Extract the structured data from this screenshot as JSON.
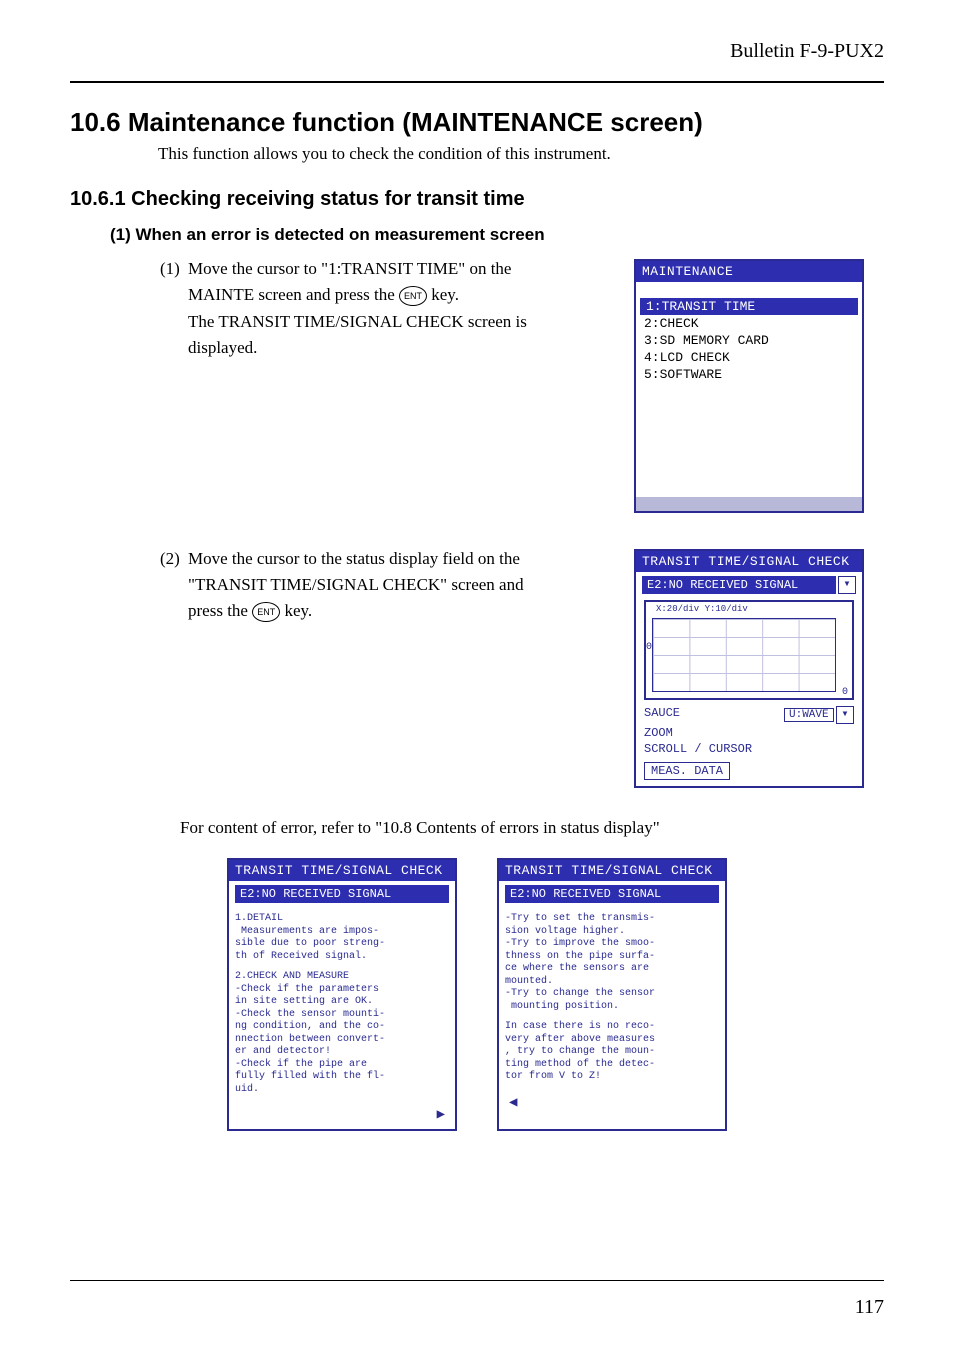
{
  "header": {
    "bulletin": "Bulletin F-9-PUX2"
  },
  "section": {
    "title": "10.6  Maintenance function (MAINTENANCE screen)",
    "intro": "This function allows you to check the condition of this instrument."
  },
  "subsection": {
    "title": "10.6.1  Checking receiving status for transit time",
    "subheading": "(1)  When an error is detected on measurement screen"
  },
  "steps": {
    "s1_num": "(1)",
    "s1_l1": "Move the cursor to \"1:TRANSIT TIME\" on the",
    "s1_l2_a": "MAINTE screen and press the ",
    "s1_l2_b": " key.",
    "s1_l3": "The TRANSIT TIME/SIGNAL CHECK screen is",
    "s1_l4": "displayed.",
    "s2_num": "(2)",
    "s2_l1": "Move the cursor to the status display field on the",
    "s2_l2": "\"TRANSIT TIME/SIGNAL CHECK\" screen and",
    "s2_l3_a": "press the ",
    "s2_l3_b": " key.",
    "ent_label": "ENT"
  },
  "ref_text": "For content of error, refer to \"10.8 Contents of errors in status display\"",
  "lcd1": {
    "title": "MAINTENANCE",
    "items": [
      {
        "label": "1:TRANSIT TIME",
        "selected": true
      },
      {
        "label": "2:CHECK",
        "selected": false
      },
      {
        "label": "3:SD MEMORY CARD",
        "selected": false
      },
      {
        "label": "4:LCD CHECK",
        "selected": false
      },
      {
        "label": "5:SOFTWARE",
        "selected": false
      }
    ]
  },
  "lcd2": {
    "title": "TRANSIT TIME/SIGNAL CHECK",
    "status": "E2:NO RECEIVED SIGNAL",
    "graph_label": "X:20/div Y:10/div",
    "sauce": "SAUCE",
    "wave": "U:WAVE",
    "zoom": "ZOOM",
    "scroll": "SCROLL / CURSOR",
    "meas": "MEAS. DATA"
  },
  "lcd3": {
    "title": "TRANSIT TIME/SIGNAL CHECK",
    "status": "E2:NO RECEIVED SIGNAL",
    "b1": "1.DETAIL\n Measurements are impos-\nsible due to poor streng-\nth of Received signal.",
    "b2": "2.CHECK AND MEASURE\n-Check if the parameters\nin site setting are OK.\n-Check the sensor mounti-\nng condition, and the co-\nnnection between convert-\ner and detector!\n-Check if the pipe are\nfully filled with the fl-\nuid.",
    "arrow": "▶"
  },
  "lcd4": {
    "title": "TRANSIT TIME/SIGNAL CHECK",
    "status": "E2:NO RECEIVED SIGNAL",
    "b1": "-Try to set the transmis-\nsion voltage higher.\n-Try to improve the smoo-\nthness on the pipe surfa-\nce where the sensors are\nmounted.\n-Try to change the sensor\n mounting position.",
    "b2": "In case there is no reco-\nvery after above measures\n, try to change the moun-\nting method of the detec-\ntor from V to Z!",
    "arrow": "◀"
  },
  "colors": {
    "title_bg": "#2d2db0",
    "title_fg": "#ffffff",
    "border": "#2a2a90",
    "footer_bar": "#b8b8d8"
  },
  "page_number": "117"
}
